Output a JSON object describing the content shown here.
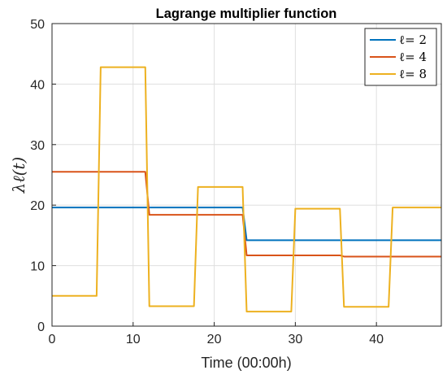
{
  "chart_data": {
    "type": "line",
    "title": "Lagrange multiplier function",
    "xlabel": "Time (00:00h)",
    "ylabel": "λℓ(t)",
    "xlim": [
      0,
      48
    ],
    "ylim": [
      0,
      50
    ],
    "xticks": [
      0,
      10,
      20,
      30,
      40
    ],
    "yticks": [
      0,
      10,
      20,
      30,
      40,
      50
    ],
    "grid": true,
    "legend_position": "top-right",
    "series": [
      {
        "name": "ℓ= 2",
        "color": "#0072BD",
        "x": [
          0,
          23.5,
          24,
          48
        ],
        "y": [
          19.6,
          19.6,
          14.2,
          14.2
        ]
      },
      {
        "name": "ℓ= 4",
        "color": "#D95319",
        "x": [
          0,
          11.5,
          12,
          23.5,
          24,
          35.5,
          36,
          48
        ],
        "y": [
          25.5,
          25.5,
          18.4,
          18.4,
          11.7,
          11.7,
          11.5,
          11.5
        ]
      },
      {
        "name": "ℓ= 8",
        "color": "#EDB120",
        "x": [
          0,
          5.5,
          6,
          11.5,
          12,
          17.5,
          18,
          23.5,
          24,
          29.5,
          30,
          35.5,
          36,
          41.5,
          42,
          48
        ],
        "y": [
          5.0,
          5.0,
          42.8,
          42.8,
          3.3,
          3.3,
          23.0,
          23.0,
          2.4,
          2.4,
          19.4,
          19.4,
          3.2,
          3.2,
          19.6,
          19.6
        ]
      }
    ]
  }
}
